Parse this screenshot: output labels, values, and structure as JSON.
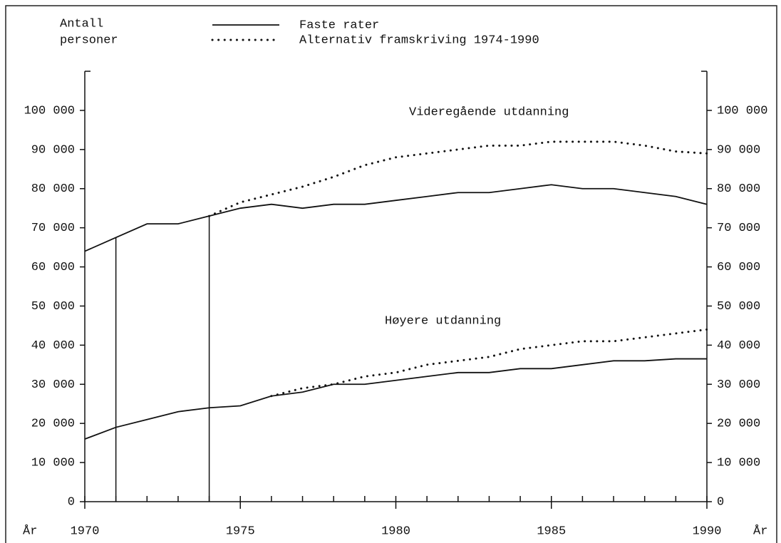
{
  "chart_data": {
    "type": "line",
    "ylabel": [
      "Antall",
      "personer"
    ],
    "xlabel": "År",
    "legend": [
      {
        "label": "Faste rater",
        "style": "solid"
      },
      {
        "label": "Alternativ framskriving 1974-1990",
        "style": "dotted"
      }
    ],
    "x": [
      1970,
      1971,
      1972,
      1973,
      1974,
      1975,
      1976,
      1977,
      1978,
      1979,
      1980,
      1981,
      1982,
      1983,
      1984,
      1985,
      1986,
      1987,
      1988,
      1989,
      1990
    ],
    "groups": [
      {
        "label": "Videregående utdanning",
        "series": [
          {
            "style": "solid",
            "values": [
              64000,
              67500,
              71000,
              71000,
              73000,
              75000,
              76000,
              75000,
              76000,
              76000,
              77000,
              78000,
              79000,
              79000,
              80000,
              81000,
              80000,
              80000,
              79000,
              78000,
              76000
            ]
          },
          {
            "style": "dotted",
            "values": [
              null,
              null,
              null,
              null,
              73000,
              76500,
              78500,
              80500,
              83000,
              86000,
              88000,
              89000,
              90000,
              91000,
              91000,
              92000,
              92000,
              92000,
              91000,
              89500,
              89000
            ]
          }
        ]
      },
      {
        "label": "Høyere utdanning",
        "series": [
          {
            "style": "solid",
            "values": [
              16000,
              19000,
              21000,
              23000,
              24000,
              24500,
              27000,
              28000,
              30000,
              30000,
              31000,
              32000,
              33000,
              33000,
              34000,
              34000,
              35000,
              36000,
              36000,
              36500,
              36500
            ]
          },
          {
            "style": "dotted",
            "values": [
              null,
              null,
              null,
              null,
              null,
              null,
              27000,
              29000,
              30000,
              32000,
              33000,
              35000,
              36000,
              37000,
              39000,
              40000,
              41000,
              41000,
              42000,
              43000,
              44000
            ]
          }
        ]
      }
    ],
    "vlines": [
      1971,
      1974
    ],
    "xlim": [
      1970,
      1990
    ],
    "xticks": [
      1970,
      1975,
      1980,
      1985,
      1990
    ],
    "xminor_ticks": [
      1970,
      1971,
      1972,
      1973,
      1974,
      1975,
      1976,
      1977,
      1978,
      1979,
      1980,
      1981,
      1982,
      1983,
      1984,
      1985,
      1986,
      1987,
      1988,
      1989,
      1990
    ],
    "ylim": [
      0,
      110000
    ],
    "yticks": [
      0,
      {
        "value": 10000,
        "label": "10 000"
      },
      {
        "value": 20000,
        "label": "20 000"
      },
      {
        "value": 30000,
        "label": "30 000"
      },
      {
        "value": 40000,
        "label": "40 000"
      },
      {
        "value": 50000,
        "label": "50 000"
      },
      {
        "value": 60000,
        "label": "60 000"
      },
      {
        "value": 70000,
        "label": "70 000"
      },
      {
        "value": 80000,
        "label": "80 000"
      },
      {
        "value": 90000,
        "label": "90 000"
      },
      {
        "value": 100000,
        "label": "100 000"
      }
    ],
    "grid": false,
    "color": "#111111"
  }
}
